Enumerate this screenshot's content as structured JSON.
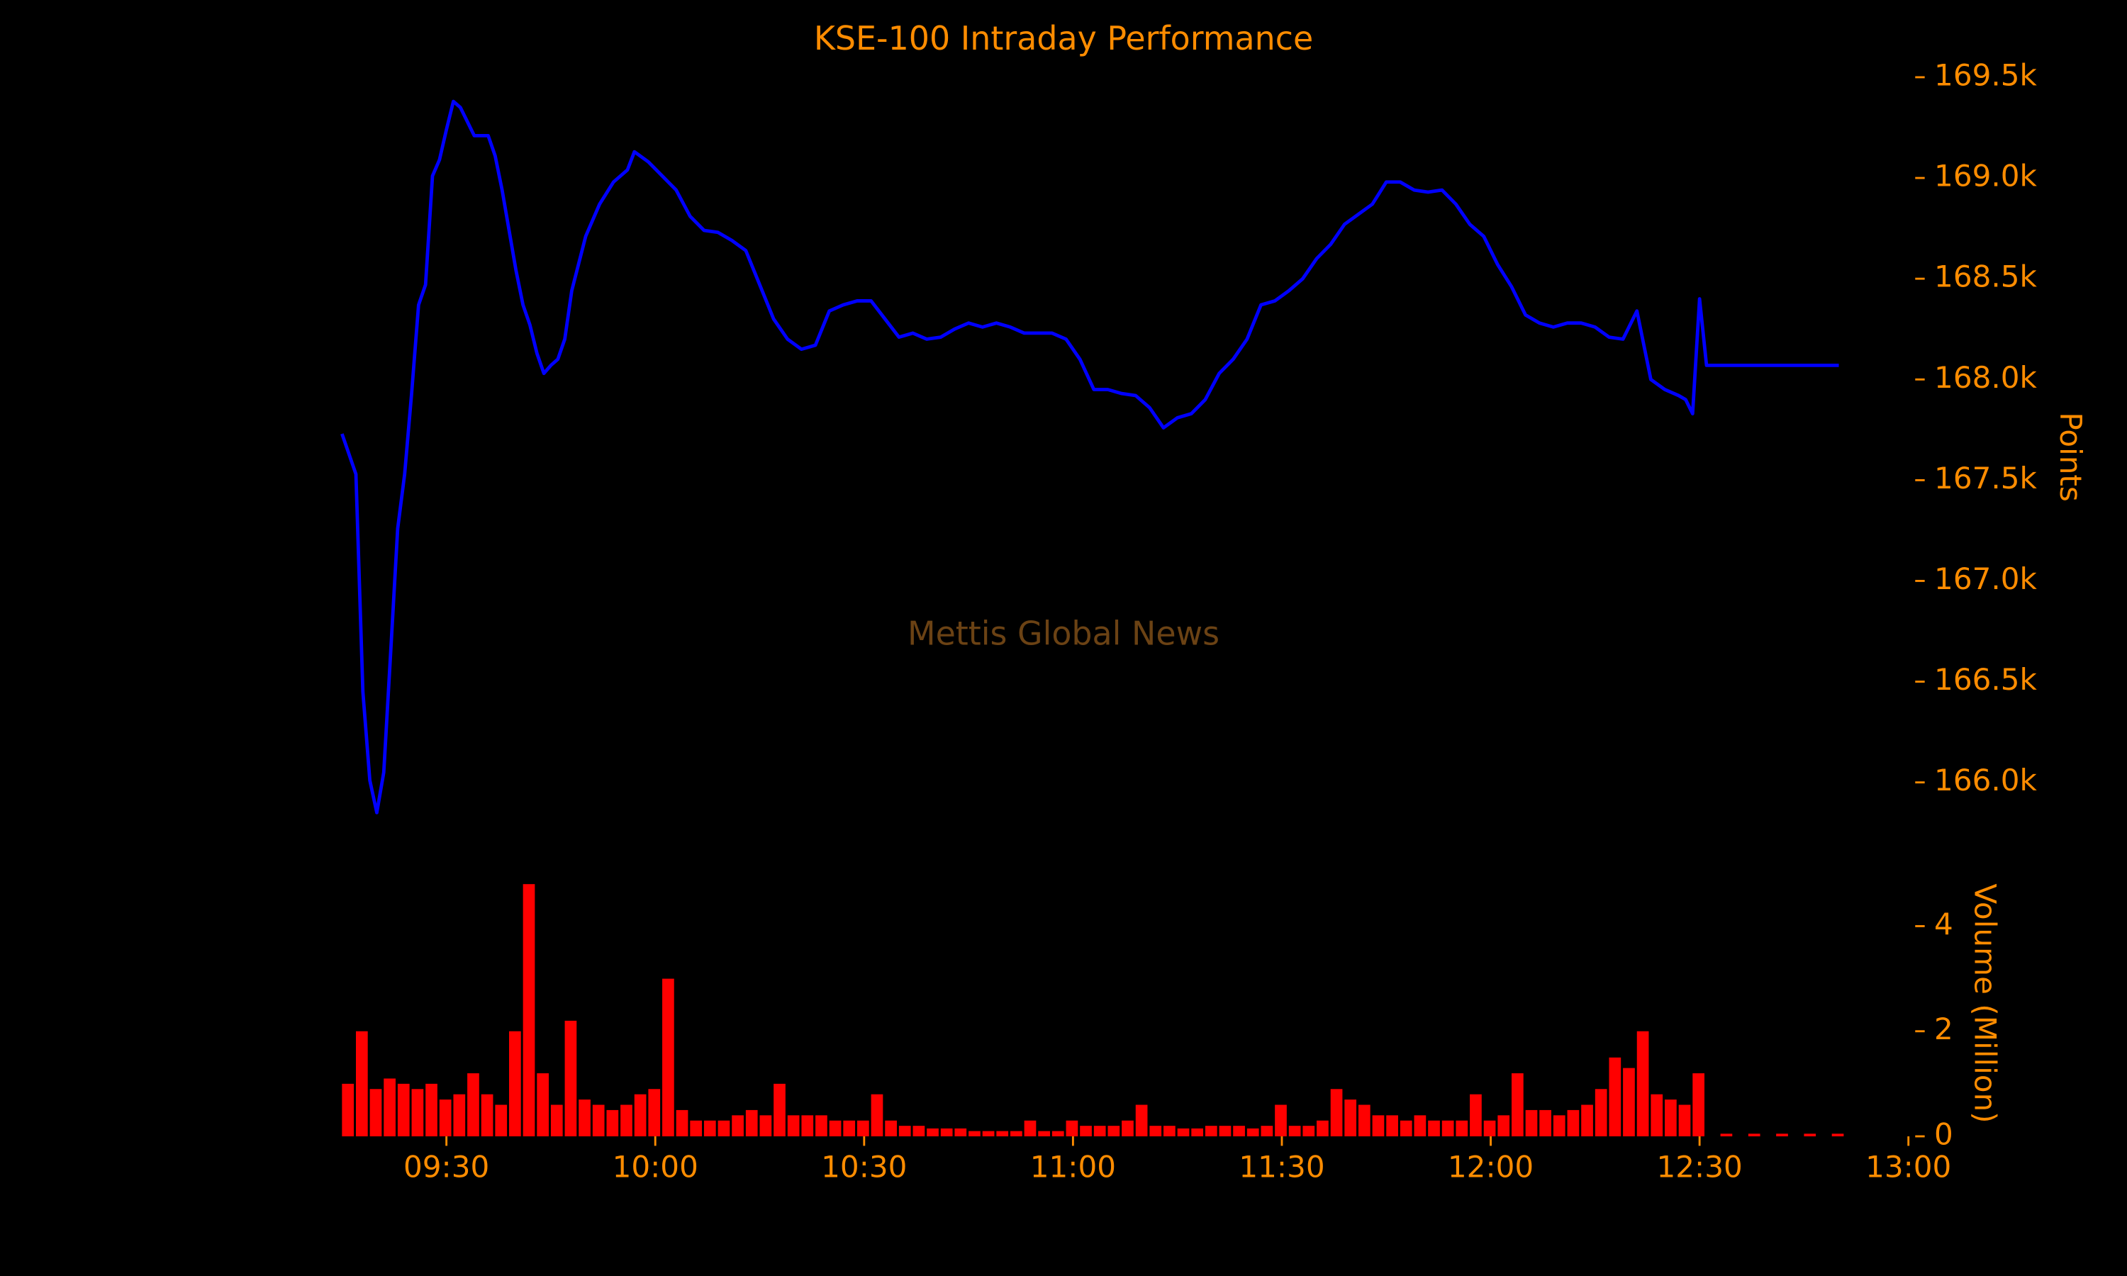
{
  "chart_data": [
    {
      "type": "line",
      "title": "KSE-100 Intraday Performance",
      "watermark": "Mettis Global News",
      "ylabel": "Points",
      "color": "#0000ff",
      "x": [
        "09:15",
        "09:17",
        "09:18",
        "09:19",
        "09:20",
        "09:21",
        "09:22",
        "09:23",
        "09:24",
        "09:25",
        "09:26",
        "09:27",
        "09:28",
        "09:29",
        "09:30",
        "09:31",
        "09:32",
        "09:33",
        "09:34",
        "09:35",
        "09:36",
        "09:37",
        "09:38",
        "09:39",
        "09:40",
        "09:41",
        "09:42",
        "09:43",
        "09:44",
        "09:45",
        "09:46",
        "09:47",
        "09:48",
        "09:50",
        "09:52",
        "09:54",
        "09:56",
        "09:57",
        "09:59",
        "10:01",
        "10:03",
        "10:05",
        "10:07",
        "10:09",
        "10:11",
        "10:13",
        "10:15",
        "10:17",
        "10:19",
        "10:21",
        "10:23",
        "10:25",
        "10:27",
        "10:29",
        "10:31",
        "10:33",
        "10:35",
        "10:37",
        "10:39",
        "10:41",
        "10:43",
        "10:45",
        "10:47",
        "10:49",
        "10:51",
        "10:53",
        "10:55",
        "10:57",
        "10:59",
        "11:01",
        "11:03",
        "11:05",
        "11:07",
        "11:09",
        "11:11",
        "11:13",
        "11:15",
        "11:17",
        "11:19",
        "11:21",
        "11:23",
        "11:25",
        "11:27",
        "11:29",
        "11:31",
        "11:33",
        "11:35",
        "11:37",
        "11:39",
        "11:41",
        "11:43",
        "11:45",
        "11:47",
        "11:49",
        "11:51",
        "11:53",
        "11:55",
        "11:57",
        "11:59",
        "12:01",
        "12:03",
        "12:05",
        "12:07",
        "12:09",
        "12:11",
        "12:13",
        "12:15",
        "12:17",
        "12:19",
        "12:21",
        "12:23",
        "12:25",
        "12:27",
        "12:28",
        "12:29",
        "12:30",
        "12:31",
        "12:50"
      ],
      "values": [
        167730,
        167530,
        166450,
        166010,
        165850,
        166050,
        166650,
        167260,
        167530,
        167930,
        168370,
        168470,
        169010,
        169090,
        169240,
        169380,
        169350,
        169280,
        169210,
        169210,
        169210,
        169110,
        168940,
        168740,
        168540,
        168370,
        168270,
        168130,
        168030,
        168070,
        168100,
        168200,
        168440,
        168710,
        168870,
        168980,
        169040,
        169130,
        169080,
        169010,
        168940,
        168810,
        168740,
        168730,
        168690,
        168640,
        168470,
        168300,
        168200,
        168150,
        168170,
        168340,
        168370,
        168390,
        168390,
        168300,
        168210,
        168230,
        168200,
        168210,
        168250,
        168280,
        168260,
        168280,
        168260,
        168230,
        168230,
        168230,
        168200,
        168100,
        167950,
        167950,
        167930,
        167920,
        167860,
        167760,
        167810,
        167830,
        167900,
        168030,
        168100,
        168200,
        168370,
        168390,
        168440,
        168500,
        168600,
        168670,
        168770,
        168820,
        168870,
        168980,
        168980,
        168940,
        168930,
        168940,
        168870,
        168770,
        168710,
        168570,
        168460,
        168320,
        168280,
        168260,
        168280,
        168280,
        168260,
        168210,
        168200,
        168340,
        168000,
        167950,
        167920,
        167900,
        167830,
        168400,
        168070,
        168070
      ],
      "xlim": [
        "09:15",
        "13:00"
      ],
      "ylim": [
        165800,
        169600
      ],
      "yticks": [
        {
          "value": 166000,
          "label": "166.0k"
        },
        {
          "value": 166500,
          "label": "166.5k"
        },
        {
          "value": 167000,
          "label": "167.0k"
        },
        {
          "value": 167500,
          "label": "167.5k"
        },
        {
          "value": 168000,
          "label": "168.0k"
        },
        {
          "value": 168500,
          "label": "168.5k"
        },
        {
          "value": 169000,
          "label": "169.0k"
        },
        {
          "value": 169500,
          "label": "169.5k"
        }
      ]
    },
    {
      "type": "bar",
      "ylabel": "Volume (Million)",
      "color": "#ff0000",
      "x": [
        "09:15",
        "09:17",
        "09:19",
        "09:21",
        "09:23",
        "09:25",
        "09:27",
        "09:29",
        "09:31",
        "09:33",
        "09:35",
        "09:37",
        "09:39",
        "09:41",
        "09:43",
        "09:45",
        "09:47",
        "09:49",
        "09:51",
        "09:53",
        "09:55",
        "09:57",
        "09:59",
        "10:01",
        "10:03",
        "10:05",
        "10:07",
        "10:09",
        "10:11",
        "10:13",
        "10:15",
        "10:17",
        "10:19",
        "10:21",
        "10:23",
        "10:25",
        "10:27",
        "10:29",
        "10:31",
        "10:33",
        "10:35",
        "10:37",
        "10:39",
        "10:41",
        "10:43",
        "10:45",
        "10:47",
        "10:49",
        "10:51",
        "10:53",
        "10:55",
        "10:57",
        "10:59",
        "11:01",
        "11:03",
        "11:05",
        "11:07",
        "11:09",
        "11:11",
        "11:13",
        "11:15",
        "11:17",
        "11:19",
        "11:21",
        "11:23",
        "11:25",
        "11:27",
        "11:29",
        "11:31",
        "11:33",
        "11:35",
        "11:37",
        "11:39",
        "11:41",
        "11:43",
        "11:45",
        "11:47",
        "11:49",
        "11:51",
        "11:53",
        "11:55",
        "11:57",
        "11:59",
        "12:01",
        "12:03",
        "12:05",
        "12:07",
        "12:09",
        "12:11",
        "12:13",
        "12:15",
        "12:17",
        "12:19",
        "12:21",
        "12:23",
        "12:25",
        "12:27",
        "12:29",
        "12:33",
        "12:37",
        "12:41",
        "12:45",
        "12:49"
      ],
      "values": [
        1.0,
        2.0,
        0.9,
        1.1,
        1.0,
        0.9,
        1.0,
        0.7,
        0.8,
        1.2,
        0.8,
        0.6,
        2.0,
        4.8,
        1.2,
        0.6,
        2.2,
        0.7,
        0.6,
        0.5,
        0.6,
        0.8,
        0.9,
        3.0,
        0.5,
        0.3,
        0.3,
        0.3,
        0.4,
        0.5,
        0.4,
        1.0,
        0.4,
        0.4,
        0.4,
        0.3,
        0.3,
        0.3,
        0.8,
        0.3,
        0.2,
        0.2,
        0.15,
        0.15,
        0.15,
        0.1,
        0.1,
        0.1,
        0.1,
        0.3,
        0.1,
        0.1,
        0.3,
        0.2,
        0.2,
        0.2,
        0.3,
        0.6,
        0.2,
        0.2,
        0.15,
        0.15,
        0.2,
        0.2,
        0.2,
        0.15,
        0.2,
        0.6,
        0.2,
        0.2,
        0.3,
        0.9,
        0.7,
        0.6,
        0.4,
        0.4,
        0.3,
        0.4,
        0.3,
        0.3,
        0.3,
        0.8,
        0.3,
        0.4,
        1.2,
        0.5,
        0.5,
        0.4,
        0.5,
        0.6,
        0.9,
        1.5,
        1.3,
        2.0,
        0.8,
        0.7,
        0.6,
        1.2,
        0.05,
        0.05,
        0.05,
        0.05,
        0.05
      ],
      "xlim": [
        "09:15",
        "13:00"
      ],
      "xticks": [
        "09:30",
        "10:00",
        "10:30",
        "11:00",
        "11:30",
        "12:00",
        "12:30",
        "13:00"
      ],
      "ylim": [
        0,
        5
      ],
      "yticks": [
        0,
        2,
        4
      ]
    }
  ]
}
